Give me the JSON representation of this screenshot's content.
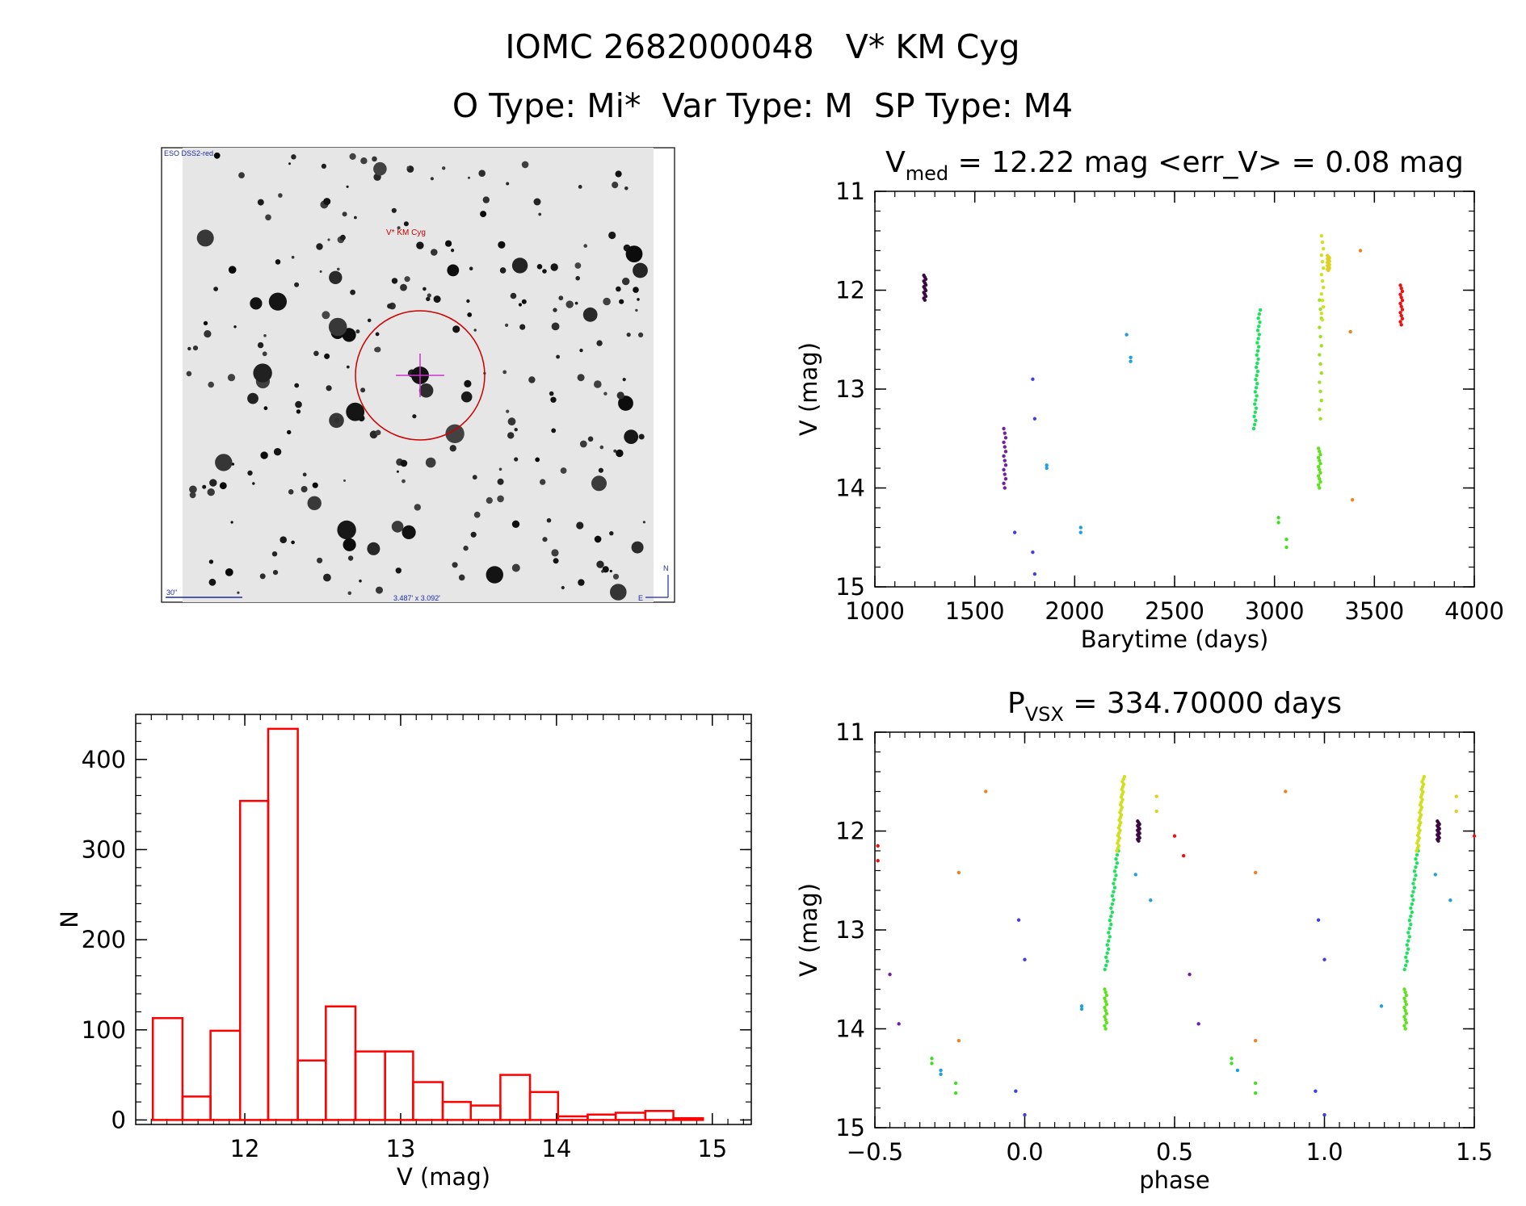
{
  "header": {
    "title": "IOMC 2682000048   V* KM Cyg",
    "subtitle": "O Type: Mi*  Var Type: M  SP Type: M4"
  },
  "finder_chart": {
    "survey_label": "ESO DSS2-red",
    "target_label": "V* KM Cyg",
    "scale_label": "30\"",
    "size_label": "3.487' x 3.092'",
    "north_label": "N",
    "east_label": "E"
  },
  "colors": {
    "histogram": "#ff0000",
    "circle": "#cc0000",
    "crosshair": "#cc33cc",
    "image_annotation": "#1a2aa0"
  },
  "chart_data": [
    {
      "id": "lightcurve",
      "type": "scatter",
      "title_main": "V",
      "title_sub": "med",
      "title_rest": " = 12.22 mag <err_V> = 0.08 mag",
      "xlabel": "Barytime (days)",
      "ylabel": "V (mag)",
      "xlim": [
        1000,
        4000
      ],
      "ylim": [
        15,
        11
      ],
      "xticks": [
        "1000",
        "1500",
        "2000",
        "2500",
        "3000",
        "3500",
        "4000"
      ],
      "yticks": [
        "11",
        "12",
        "13",
        "14",
        "15"
      ],
      "groups": [
        {
          "color": "#3a0a40",
          "x": 1250,
          "y": [
            11.85,
            12.1
          ],
          "kind": "vline"
        },
        {
          "color": "#7020a0",
          "x": 1650,
          "y": [
            13.4,
            14.0
          ],
          "kind": "vline"
        },
        {
          "color": "#4040e0",
          "points": [
            [
              1700,
              14.45
            ],
            [
              1790,
              12.9
            ],
            [
              1790,
              14.65
            ],
            [
              1800,
              13.3
            ],
            [
              1800,
              14.87
            ]
          ]
        },
        {
          "color": "#20a0e0",
          "points": [
            [
              1860,
              13.77
            ],
            [
              1860,
              13.8
            ],
            [
              2030,
              14.4
            ],
            [
              2030,
              14.45
            ],
            [
              2260,
              12.45
            ],
            [
              2280,
              12.68
            ],
            [
              2280,
              12.72
            ]
          ]
        },
        {
          "color": "#20e060",
          "line": [
            [
              2900,
              13.4
            ],
            [
              2925,
              12.2
            ]
          ]
        },
        {
          "color": "#40e020",
          "points": [
            [
              3020,
              14.3
            ],
            [
              3020,
              14.35
            ],
            [
              3060,
              14.52
            ],
            [
              3060,
              14.6
            ]
          ]
        },
        {
          "color": "#60e020",
          "x": 3225,
          "y": [
            13.6,
            14.0
          ],
          "kind": "vline"
        },
        {
          "color": "#a0e020",
          "x": 3230,
          "y": [
            12.1,
            13.3
          ],
          "kind": "vline"
        },
        {
          "color": "#d0e020",
          "x": 3240,
          "y": [
            11.45,
            12.3
          ],
          "kind": "vline"
        },
        {
          "color": "#e0d020",
          "x": 3270,
          "y": [
            11.65,
            11.8
          ],
          "kind": "vline"
        },
        {
          "color": "#f08020",
          "points": [
            [
              3380,
              12.42
            ],
            [
              3390,
              14.12
            ],
            [
              3430,
              11.6
            ]
          ]
        },
        {
          "color": "#ee1111",
          "x": 3635,
          "y": [
            11.95,
            12.35
          ],
          "kind": "vline"
        }
      ]
    },
    {
      "id": "phased",
      "type": "scatter",
      "title_main": "P",
      "title_sub": "VSX",
      "title_rest": " = 334.70000 days",
      "xlabel": "phase",
      "ylabel": "V (mag)",
      "xlim": [
        -0.5,
        1.5
      ],
      "ylim": [
        15,
        11
      ],
      "xticks": [
        "−0.5",
        "0.0",
        "0.5",
        "1.0",
        "1.5"
      ],
      "yticks": [
        "11",
        "12",
        "13",
        "14",
        "15"
      ],
      "period": 334.7,
      "groups": [
        {
          "color": "#ee1111",
          "points": [
            [
              -0.49,
              12.15
            ],
            [
              -0.49,
              12.3
            ],
            [
              0.5,
              12.05
            ],
            [
              0.53,
              12.25
            ],
            [
              1.5,
              12.05
            ]
          ]
        },
        {
          "color": "#7020a0",
          "points": [
            [
              -0.45,
              13.45
            ],
            [
              -0.42,
              13.95
            ],
            [
              0.55,
              13.45
            ],
            [
              0.58,
              13.95
            ]
          ]
        },
        {
          "color": "#f08020",
          "points": [
            [
              -0.13,
              11.6
            ],
            [
              -0.22,
              12.42
            ],
            [
              -0.22,
              14.12
            ],
            [
              0.87,
              11.6
            ],
            [
              0.77,
              12.42
            ],
            [
              0.77,
              14.12
            ]
          ]
        },
        {
          "color": "#4040e0",
          "points": [
            [
              -0.03,
              14.63
            ],
            [
              0.0,
              14.87
            ],
            [
              -0.02,
              12.9
            ],
            [
              0.0,
              13.3
            ],
            [
              0.97,
              14.63
            ],
            [
              1.0,
              14.87
            ],
            [
              0.98,
              12.9
            ],
            [
              1.0,
              13.3
            ]
          ]
        },
        {
          "color": "#20a0e0",
          "points": [
            [
              0.19,
              13.77
            ],
            [
              0.19,
              13.8
            ],
            [
              -0.28,
              14.42
            ],
            [
              -0.28,
              14.46
            ],
            [
              0.37,
              12.44
            ],
            [
              0.42,
              12.7
            ],
            [
              1.19,
              13.77
            ],
            [
              0.71,
              14.42
            ],
            [
              1.37,
              12.44
            ],
            [
              1.42,
              12.7
            ]
          ]
        },
        {
          "color": "#40e020",
          "points": [
            [
              -0.31,
              14.3
            ],
            [
              -0.31,
              14.35
            ],
            [
              -0.23,
              14.55
            ],
            [
              -0.23,
              14.65
            ],
            [
              0.69,
              14.3
            ],
            [
              0.69,
              14.35
            ],
            [
              0.77,
              14.55
            ],
            [
              0.77,
              14.65
            ]
          ]
        },
        {
          "color": "#20e060",
          "line": [
            [
              0.27,
              13.4
            ],
            [
              0.31,
              12.2
            ]
          ]
        },
        {
          "color": "#20e060",
          "line": [
            [
              1.27,
              13.4
            ],
            [
              1.31,
              12.2
            ]
          ]
        },
        {
          "color": "#60e020",
          "x": 0.27,
          "y": [
            13.6,
            14.0
          ],
          "kind": "vline"
        },
        {
          "color": "#60e020",
          "x": 1.27,
          "y": [
            13.6,
            14.0
          ],
          "kind": "vline"
        },
        {
          "color": "#d0e020",
          "line": [
            [
              0.31,
              12.2
            ],
            [
              0.33,
              11.45
            ]
          ]
        },
        {
          "color": "#d0e020",
          "line": [
            [
              1.31,
              12.2
            ],
            [
              1.33,
              11.45
            ]
          ]
        },
        {
          "color": "#e0d020",
          "points": [
            [
              0.44,
              11.65
            ],
            [
              0.44,
              11.8
            ],
            [
              1.44,
              11.65
            ],
            [
              1.44,
              11.8
            ]
          ]
        },
        {
          "color": "#3a0a40",
          "x": 0.38,
          "y": [
            11.9,
            12.1
          ],
          "kind": "vline"
        },
        {
          "color": "#3a0a40",
          "x": 1.38,
          "y": [
            11.9,
            12.1
          ],
          "kind": "vline"
        }
      ]
    },
    {
      "id": "histogram",
      "type": "bar",
      "xlabel": "V (mag)",
      "ylabel": "N",
      "xlim": [
        11.3,
        15.25
      ],
      "ylim": [
        -5,
        450
      ],
      "xticks": [
        "12",
        "13",
        "14",
        "15"
      ],
      "yticks": [
        "0",
        "100",
        "200",
        "300",
        "400"
      ],
      "bin_edges": [
        11.41,
        11.6,
        11.78,
        11.97,
        12.15,
        12.34,
        12.52,
        12.71,
        12.9,
        13.08,
        13.27,
        13.45,
        13.64,
        13.83,
        14.01,
        14.2,
        14.38,
        14.57,
        14.75,
        14.94
      ],
      "values": [
        113,
        26,
        99,
        354,
        434,
        66,
        126,
        76,
        76,
        42,
        20,
        16,
        50,
        31,
        4,
        6,
        8,
        10,
        2
      ]
    }
  ]
}
